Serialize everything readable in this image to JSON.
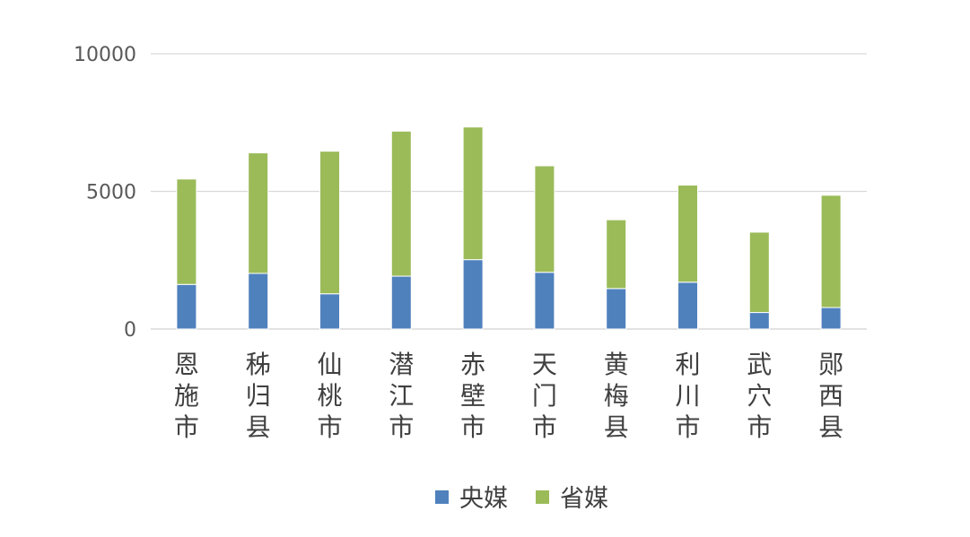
{
  "chart_data": {
    "type": "bar",
    "stacked": true,
    "categories": [
      "恩施市",
      "秭归县",
      "仙桃市",
      "潜江市",
      "赤壁市",
      "天门市",
      "黄梅县",
      "利川市",
      "武穴市",
      "郧西县"
    ],
    "series": [
      {
        "name": "央媒",
        "color": "#4f81bd",
        "values": [
          1620,
          2020,
          1280,
          1920,
          2520,
          2060,
          1470,
          1700,
          600,
          780
        ]
      },
      {
        "name": "省媒",
        "color": "#9bbb59",
        "values": [
          3830,
          4380,
          5180,
          5270,
          4820,
          3870,
          2500,
          3530,
          2920,
          4080
        ]
      }
    ],
    "yticks": [
      "0",
      "5000",
      "10000"
    ],
    "ylim": [
      0,
      10000
    ],
    "grid": true,
    "legend_position": "bottom",
    "title": "",
    "xlabel": "",
    "ylabel": ""
  }
}
